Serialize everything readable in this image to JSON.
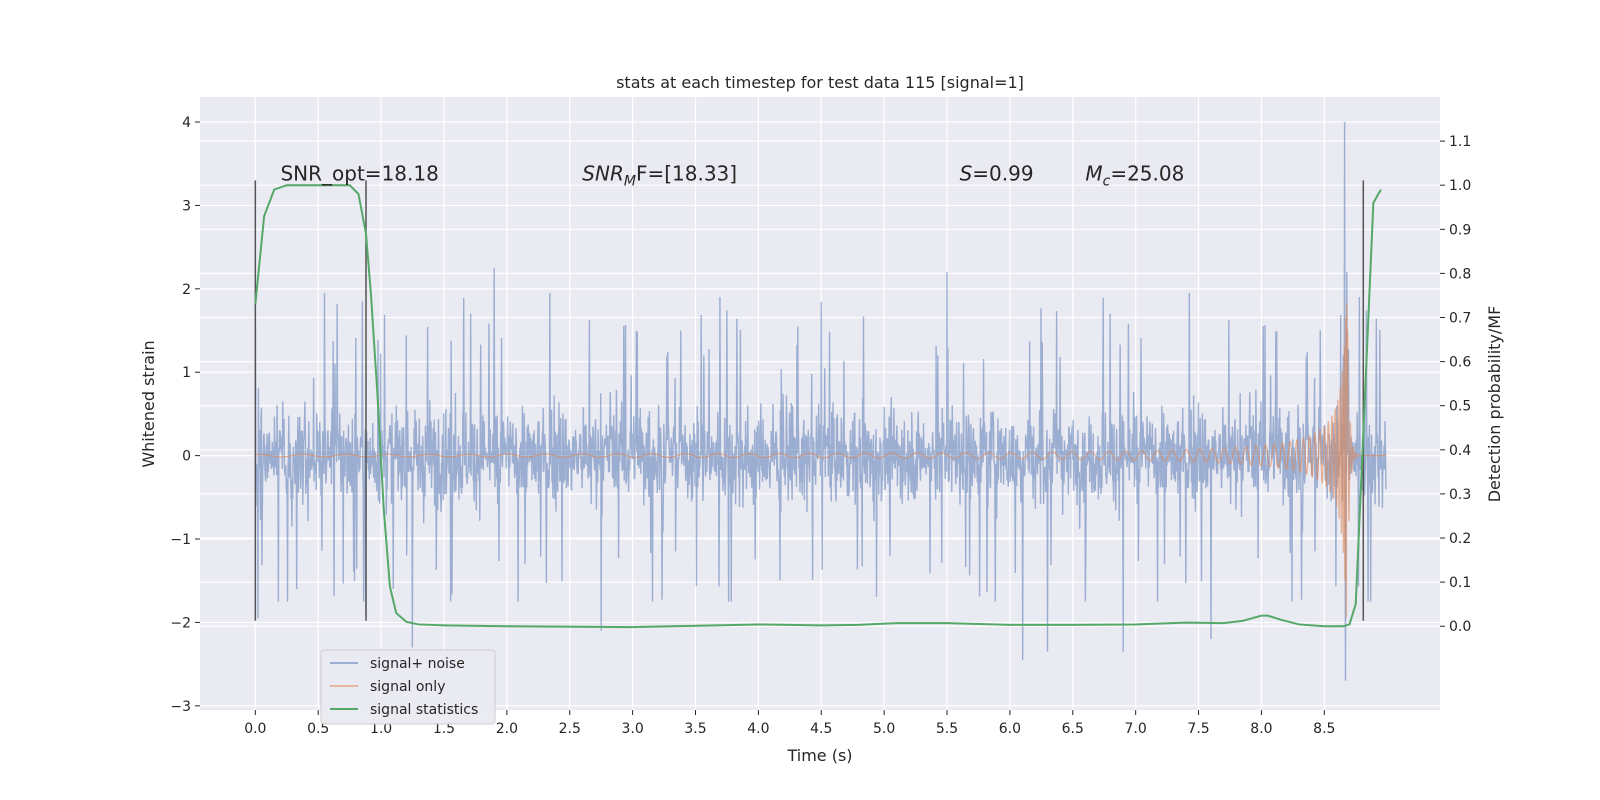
{
  "chart_data": {
    "type": "line",
    "title": "stats at each timestep for test data 115 [signal=1]",
    "xlabel": "Time (s)",
    "ylabel": "Whitened strain",
    "ylabel_right": "Detection probability/MF",
    "xlim": [
      -0.44,
      9.42
    ],
    "ylim": [
      -3.05,
      4.3
    ],
    "ylim_right": [
      -0.19,
      1.2
    ],
    "xticks": [
      0.0,
      0.5,
      1.0,
      1.5,
      2.0,
      2.5,
      3.0,
      3.5,
      4.0,
      4.5,
      5.0,
      5.5,
      6.0,
      6.5,
      7.0,
      7.5,
      8.0,
      8.5
    ],
    "xtick_labels": [
      "0.0",
      "0.5",
      "1.0",
      "1.5",
      "2.0",
      "2.5",
      "3.0",
      "3.5",
      "4.0",
      "4.5",
      "5.0",
      "5.5",
      "6.0",
      "6.5",
      "7.0",
      "7.5",
      "8.0",
      "8.5"
    ],
    "yticks": [
      -3,
      -2,
      -1,
      0,
      1,
      2,
      3,
      4
    ],
    "ytick_labels": [
      "−3",
      "−2",
      "−1",
      "0",
      "1",
      "2",
      "3",
      "4"
    ],
    "yticks_right": [
      0.0,
      0.1,
      0.2,
      0.3,
      0.4,
      0.5,
      0.6,
      0.7,
      0.8,
      0.9,
      1.0,
      1.1
    ],
    "ytick_labels_right": [
      "0.0",
      "0.1",
      "0.2",
      "0.3",
      "0.4",
      "0.5",
      "0.6",
      "0.7",
      "0.8",
      "0.9",
      "1.0",
      "1.1"
    ],
    "grid": true,
    "legend_position": "bottom-left",
    "series": [
      {
        "name": "signal+ noise",
        "color": "#4c72b0",
        "axis": "left",
        "kind": "noise",
        "t_range": [
          0.0,
          8.99
        ],
        "noise_sigma": 0.55,
        "peaks": [
          {
            "t": 0.0,
            "y": 1.9
          },
          {
            "t": 0.02,
            "y": -1.95
          },
          {
            "t": 0.85,
            "y": 1.85
          },
          {
            "t": 0.88,
            "y": -1.9
          },
          {
            "t": 1.9,
            "y": 2.25
          },
          {
            "t": 1.25,
            "y": -2.3
          },
          {
            "t": 2.75,
            "y": -2.1
          },
          {
            "t": 5.5,
            "y": 2.2
          },
          {
            "t": 6.1,
            "y": -2.45
          },
          {
            "t": 6.3,
            "y": -2.35
          },
          {
            "t": 6.9,
            "y": -2.35
          },
          {
            "t": 7.6,
            "y": -2.2
          },
          {
            "t": 8.66,
            "y": 4.0
          },
          {
            "t": 8.67,
            "y": -2.7
          },
          {
            "t": 8.68,
            "y": 2.2
          }
        ]
      },
      {
        "name": "signal only",
        "color": "#dd8452",
        "axis": "left",
        "kind": "chirp",
        "t_range": [
          0.0,
          8.99
        ],
        "t_merger": 8.68,
        "peak_amplitude": 2.1
      },
      {
        "name": "signal statistics",
        "color": "#55a868",
        "axis": "right",
        "kind": "line",
        "x": [
          0.0,
          0.07,
          0.15,
          0.25,
          0.5,
          0.62,
          0.75,
          0.82,
          0.88,
          0.92,
          0.97,
          1.02,
          1.07,
          1.12,
          1.2,
          1.3,
          1.5,
          2.0,
          3.0,
          4.0,
          4.5,
          4.8,
          5.1,
          5.5,
          6.0,
          6.5,
          7.0,
          7.4,
          7.7,
          7.85,
          8.0,
          8.05,
          8.15,
          8.3,
          8.5,
          8.6,
          8.65,
          8.7,
          8.75,
          8.82,
          8.89,
          8.95
        ],
        "y": [
          0.73,
          0.93,
          0.99,
          1.0,
          1.0,
          1.0,
          1.0,
          0.98,
          0.89,
          0.75,
          0.53,
          0.27,
          0.09,
          0.03,
          0.01,
          0.004,
          0.002,
          0.0,
          -0.002,
          0.004,
          0.002,
          0.003,
          0.007,
          0.007,
          0.003,
          0.003,
          0.004,
          0.008,
          0.007,
          0.012,
          0.024,
          0.024,
          0.015,
          0.004,
          0.0,
          0.0,
          0.0,
          0.004,
          0.05,
          0.5,
          0.96,
          0.99
        ]
      }
    ],
    "vlines": [
      {
        "t": 0.0,
        "y0": -1.98,
        "y1": 3.3
      },
      {
        "t": 0.88,
        "y0": -1.98,
        "y1": 3.3
      },
      {
        "t": 8.81,
        "y0": -1.98,
        "y1": 3.3
      }
    ],
    "annotations": [
      {
        "text": "SNR_opt=18.18",
        "t": 0.2,
        "y": 3.3
      },
      {
        "text": "SNR",
        "sub": "M",
        "rest": "F=[18.33]",
        "italic_main": true,
        "t": 2.6,
        "y": 3.3
      },
      {
        "text": "S",
        "rest": "=0.99",
        "italic_main": true,
        "t": 5.6,
        "y": 3.3
      },
      {
        "text": "M",
        "sub": "c",
        "rest": "=25.08",
        "italic_main": true,
        "t": 6.6,
        "y": 3.3
      }
    ]
  }
}
